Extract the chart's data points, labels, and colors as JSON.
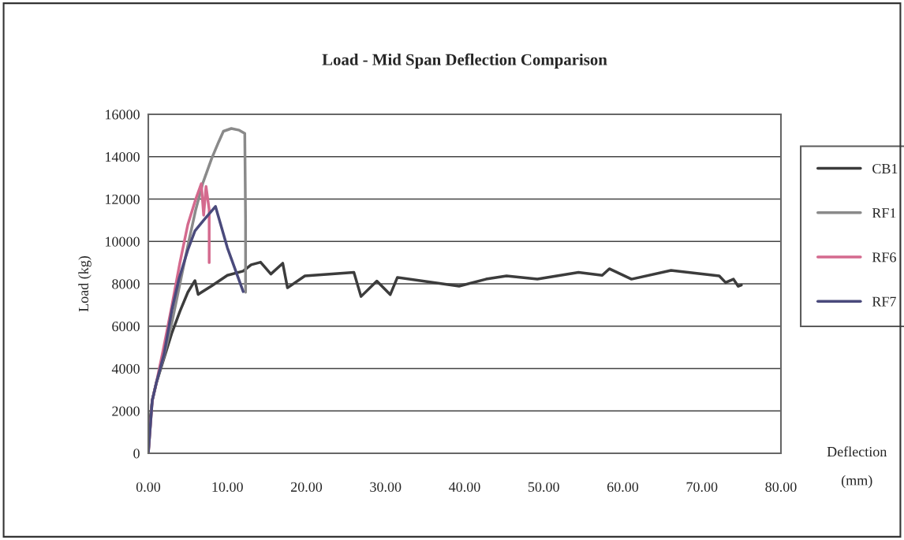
{
  "chart_data": {
    "type": "line",
    "title": "Load - Mid Span Deflection Comparison",
    "xlabel": "Deflection\n(mm)",
    "ylabel": "Load (kg)",
    "xlim": [
      0,
      80
    ],
    "xticks": [
      {
        "value": 0,
        "label": "0.00"
      },
      {
        "value": 10,
        "label": "10.00"
      },
      {
        "value": 20,
        "label": "20.00"
      },
      {
        "value": 30,
        "label": "30.00"
      },
      {
        "value": 40,
        "label": "40.00"
      },
      {
        "value": 50,
        "label": "50.00"
      },
      {
        "value": 60,
        "label": "60.00"
      },
      {
        "value": 70,
        "label": "70.00"
      },
      {
        "value": 80,
        "label": "80.00"
      }
    ],
    "ylim": [
      0,
      16000
    ],
    "yticks": [
      0,
      2000,
      4000,
      6000,
      8000,
      10000,
      12000,
      14000,
      16000
    ],
    "grid": "y",
    "legend": "right",
    "series": [
      {
        "name": "CB1",
        "color": "#3c3c3c",
        "x": [
          0,
          0.2,
          0.5,
          1,
          2,
          3,
          4,
          5,
          5.9,
          6.3,
          8,
          10,
          12,
          13,
          14.2,
          15.5,
          17.0,
          17.6,
          19.8,
          26.0,
          26.9,
          28.9,
          30.6,
          31.5,
          39.3,
          42.7,
          45.3,
          49.2,
          54.4,
          57.4,
          58.3,
          61.1,
          66.1,
          72.2,
          73.0,
          74.0,
          74.6,
          75.0
        ],
        "values": [
          0,
          1500,
          2500,
          3300,
          4500,
          5700,
          6700,
          7600,
          8150,
          7500,
          7900,
          8400,
          8600,
          8900,
          9020,
          8460,
          8970,
          7810,
          8370,
          8540,
          7400,
          8130,
          7490,
          8300,
          7890,
          8220,
          8370,
          8220,
          8540,
          8400,
          8710,
          8220,
          8630,
          8370,
          8060,
          8220,
          7880,
          7940
        ]
      },
      {
        "name": "RF1",
        "color": "#8a8a8a",
        "x": [
          0,
          0.5,
          1,
          2,
          3,
          4,
          5,
          6,
          6.9,
          8,
          8.9,
          9.5,
          10.5,
          11.5,
          12.2,
          12.3,
          12.3
        ],
        "values": [
          0,
          2500,
          3300,
          4600,
          6200,
          8000,
          9800,
          11500,
          12760,
          13900,
          14700,
          15200,
          15330,
          15250,
          15100,
          11000,
          7600
        ]
      },
      {
        "name": "RF6",
        "color": "#d46a8e",
        "x": [
          0,
          0.5,
          1,
          1.9,
          3,
          4,
          5,
          6,
          6.7,
          7.0,
          7.3,
          7.7,
          7.7
        ],
        "values": [
          0,
          2500,
          3300,
          4910,
          7000,
          9000,
          10800,
          12000,
          12720,
          11240,
          12600,
          11500,
          9000
        ]
      },
      {
        "name": "RF7",
        "color": "#4a4a7c",
        "x": [
          0,
          0.5,
          1,
          2,
          3,
          3.9,
          5,
          5.9,
          7,
          8.5,
          10,
          12.0
        ],
        "values": [
          0,
          2500,
          3300,
          4700,
          6800,
          8260,
          9600,
          10500,
          11000,
          11650,
          9700,
          7630
        ]
      }
    ]
  }
}
